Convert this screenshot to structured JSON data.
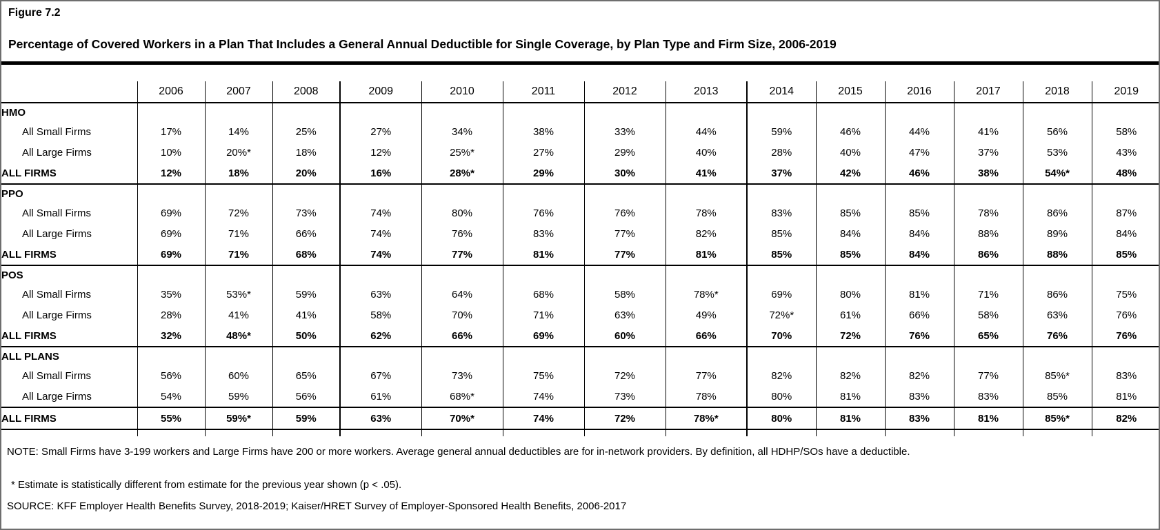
{
  "figure": {
    "label": "Figure 7.2",
    "title": "Percentage of Covered Workers in a Plan That Includes a General Annual Deductible for Single Coverage, by Plan Type and Firm Size, 2006-2019"
  },
  "chart_data": {
    "type": "table",
    "years": [
      "2006",
      "2007",
      "2008",
      "2009",
      "2010",
      "2011",
      "2012",
      "2013",
      "2014",
      "2015",
      "2016",
      "2017",
      "2018",
      "2019"
    ],
    "sections": [
      {
        "name": "HMO",
        "rows": [
          {
            "label": "All Small Firms",
            "emphasis": false,
            "values": [
              "17%",
              "14%",
              "25%",
              "27%",
              "34%",
              "38%",
              "33%",
              "44%",
              "59%",
              "46%",
              "44%",
              "41%",
              "56%",
              "58%"
            ]
          },
          {
            "label": "All Large Firms",
            "emphasis": false,
            "values": [
              "10%",
              "20%*",
              "18%",
              "12%",
              "25%*",
              "27%",
              "29%",
              "40%",
              "28%",
              "40%",
              "47%",
              "37%",
              "53%",
              "43%"
            ]
          },
          {
            "label": "ALL FIRMS",
            "emphasis": true,
            "values": [
              "12%",
              "18%",
              "20%",
              "16%",
              "28%*",
              "29%",
              "30%",
              "41%",
              "37%",
              "42%",
              "46%",
              "38%",
              "54%*",
              "48%"
            ]
          }
        ]
      },
      {
        "name": "PPO",
        "rows": [
          {
            "label": "All Small Firms",
            "emphasis": false,
            "values": [
              "69%",
              "72%",
              "73%",
              "74%",
              "80%",
              "76%",
              "76%",
              "78%",
              "83%",
              "85%",
              "85%",
              "78%",
              "86%",
              "87%"
            ]
          },
          {
            "label": "All Large Firms",
            "emphasis": false,
            "values": [
              "69%",
              "71%",
              "66%",
              "74%",
              "76%",
              "83%",
              "77%",
              "82%",
              "85%",
              "84%",
              "84%",
              "88%",
              "89%",
              "84%"
            ]
          },
          {
            "label": "ALL FIRMS",
            "emphasis": true,
            "values": [
              "69%",
              "71%",
              "68%",
              "74%",
              "77%",
              "81%",
              "77%",
              "81%",
              "85%",
              "85%",
              "84%",
              "86%",
              "88%",
              "85%"
            ]
          }
        ]
      },
      {
        "name": "POS",
        "rows": [
          {
            "label": "All Small Firms",
            "emphasis": false,
            "values": [
              "35%",
              "53%*",
              "59%",
              "63%",
              "64%",
              "68%",
              "58%",
              "78%*",
              "69%",
              "80%",
              "81%",
              "71%",
              "86%",
              "75%"
            ]
          },
          {
            "label": "All Large Firms",
            "emphasis": false,
            "values": [
              "28%",
              "41%",
              "41%",
              "58%",
              "70%",
              "71%",
              "63%",
              "49%",
              "72%*",
              "61%",
              "66%",
              "58%",
              "63%",
              "76%"
            ]
          },
          {
            "label": "ALL FIRMS",
            "emphasis": true,
            "values": [
              "32%",
              "48%*",
              "50%",
              "62%",
              "66%",
              "69%",
              "60%",
              "66%",
              "70%",
              "72%",
              "76%",
              "65%",
              "76%",
              "76%"
            ]
          }
        ]
      },
      {
        "name": "ALL PLANS",
        "rows": [
          {
            "label": "All Small Firms",
            "emphasis": false,
            "values": [
              "56%",
              "60%",
              "65%",
              "67%",
              "73%",
              "75%",
              "72%",
              "77%",
              "82%",
              "82%",
              "82%",
              "77%",
              "85%*",
              "83%"
            ]
          },
          {
            "label": "All Large Firms",
            "emphasis": false,
            "values": [
              "54%",
              "59%",
              "56%",
              "61%",
              "68%*",
              "74%",
              "73%",
              "78%",
              "80%",
              "81%",
              "83%",
              "83%",
              "85%",
              "81%"
            ]
          },
          {
            "label": "ALL FIRMS",
            "emphasis": true,
            "values": [
              "55%",
              "59%*",
              "59%",
              "63%",
              "70%*",
              "74%",
              "72%",
              "78%*",
              "80%",
              "81%",
              "83%",
              "81%",
              "85%*",
              "82%"
            ]
          }
        ]
      }
    ]
  },
  "notes": {
    "note": "NOTE: Small Firms have 3-199 workers and Large Firms have 200 or more workers. Average general annual deductibles are for in-network providers. By definition, all HDHP/SOs have a deductible.",
    "significance": "* Estimate is statistically different from estimate for the previous year shown (p < .05).",
    "source": "SOURCE: KFF Employer Health Benefits Survey, 2018-2019; Kaiser/HRET Survey of Employer-Sponsored Health Benefits, 2006-2017"
  },
  "colors": {
    "background": "#ffffff",
    "text": "#000000",
    "grid_line": "#000000",
    "page_border": "#6e6e6e"
  }
}
